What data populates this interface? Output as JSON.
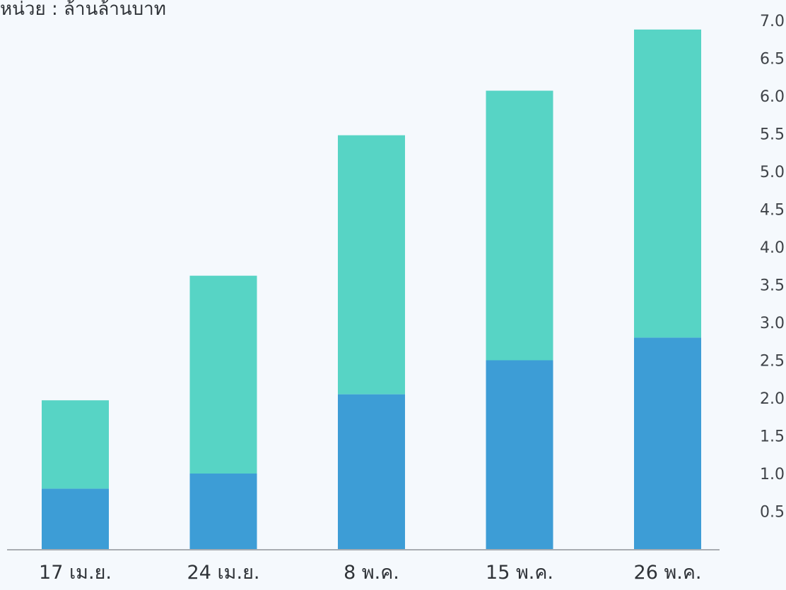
{
  "chart_data": {
    "type": "bar",
    "stacked": true,
    "unit_text": "หน่วย : ล้านล้านบาท",
    "categories": [
      "17 เม.ย.",
      "24 เม.ย.",
      "8 พ.ค.",
      "15 พ.ค.",
      "26 พ.ค."
    ],
    "series": [
      {
        "values": [
          0.8,
          1.0,
          2.05,
          2.5,
          2.8
        ],
        "color": "#3d9dd6"
      },
      {
        "values": [
          1.17,
          2.62,
          3.43,
          3.57,
          4.08
        ],
        "color": "#57d4c5"
      }
    ],
    "yticks": [
      "0.5",
      "1.0",
      "1.5",
      "2.0",
      "2.5",
      "3.0",
      "3.5",
      "4.0",
      "4.5",
      "5.0",
      "5.5",
      "6.0",
      "6.5",
      "7.0"
    ],
    "ylim": [
      0,
      7.0
    ],
    "y_axis_side": "right",
    "grid": false,
    "legend": "none"
  }
}
